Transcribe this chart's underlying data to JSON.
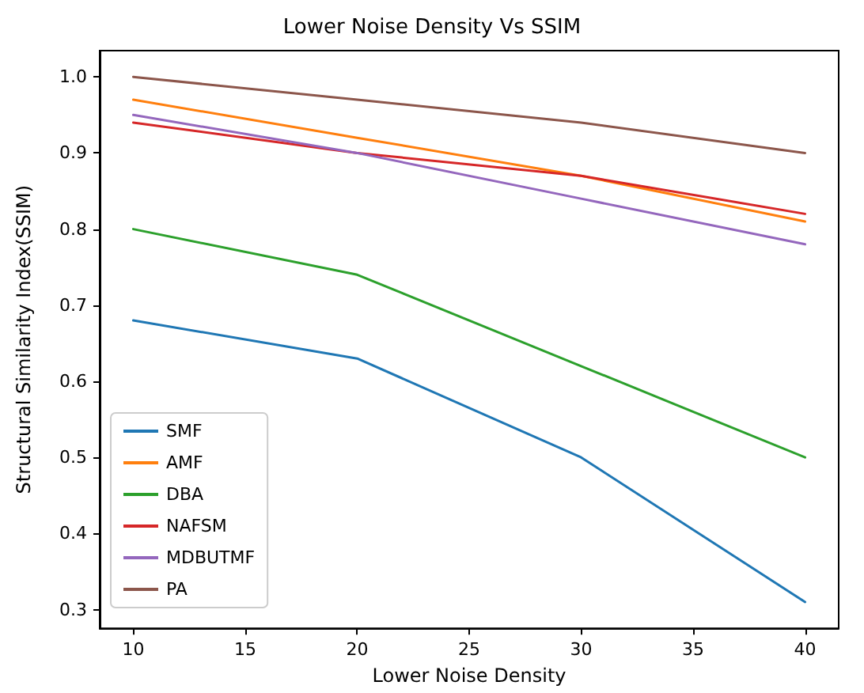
{
  "chart_data": {
    "type": "line",
    "title": "Lower Noise Density Vs SSIM",
    "xlabel": "Lower Noise Density",
    "ylabel": "Structural Similarity Index(SSIM)",
    "x": [
      10,
      20,
      30,
      40
    ],
    "series": [
      {
        "name": "SMF",
        "color": "#1f77b4",
        "values": [
          0.68,
          0.63,
          0.5,
          0.31
        ]
      },
      {
        "name": "AMF",
        "color": "#ff7f0e",
        "values": [
          0.97,
          0.92,
          0.87,
          0.81
        ]
      },
      {
        "name": "DBA",
        "color": "#2ca02c",
        "values": [
          0.8,
          0.74,
          0.62,
          0.5
        ]
      },
      {
        "name": "NAFSM",
        "color": "#d62728",
        "values": [
          0.94,
          0.9,
          0.87,
          0.82
        ]
      },
      {
        "name": "MDBUTMF",
        "color": "#9467bd",
        "values": [
          0.95,
          0.9,
          0.84,
          0.78
        ]
      },
      {
        "name": "PA",
        "color": "#8c564b",
        "values": [
          1.0,
          0.97,
          0.94,
          0.9
        ]
      }
    ],
    "xlim": [
      8.5,
      41.5
    ],
    "xticks": [
      10,
      15,
      20,
      25,
      30,
      35,
      40
    ],
    "ylim": [
      0.2755,
      1.0345
    ],
    "yticks": [
      0.3,
      0.4,
      0.5,
      0.6,
      0.7,
      0.8,
      0.9,
      {
        "value": 1.0,
        "label": "1.0"
      }
    ],
    "grid": false,
    "legend": "bottom left",
    "marker": "none",
    "line_style": "solid"
  }
}
